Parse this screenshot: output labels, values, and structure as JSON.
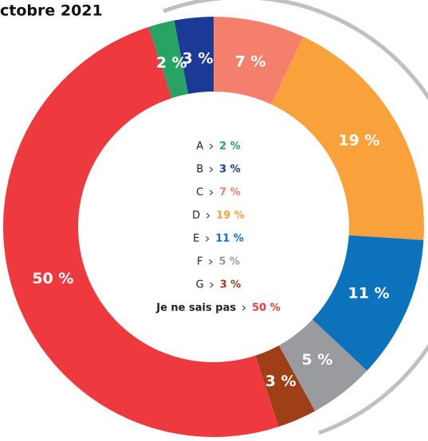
{
  "chart_data": {
    "type": "pie",
    "donut": true,
    "title": "ctobre 2021",
    "categories": [
      "A",
      "B",
      "C",
      "D",
      "E",
      "F",
      "G",
      "Je ne sais pas"
    ],
    "values": [
      2,
      3,
      7,
      19,
      11,
      5,
      3,
      50
    ],
    "value_labels": [
      "2 %",
      "3 %",
      "7 %",
      "19 %",
      "11 %",
      "5 %",
      "3 %",
      "50 %"
    ],
    "colors": [
      "#27a463",
      "#1b3a96",
      "#f47f6c",
      "#f9a23c",
      "#0b72bb",
      "#9a9b9f",
      "#9e3f17",
      "#ee3a3e"
    ]
  }
}
